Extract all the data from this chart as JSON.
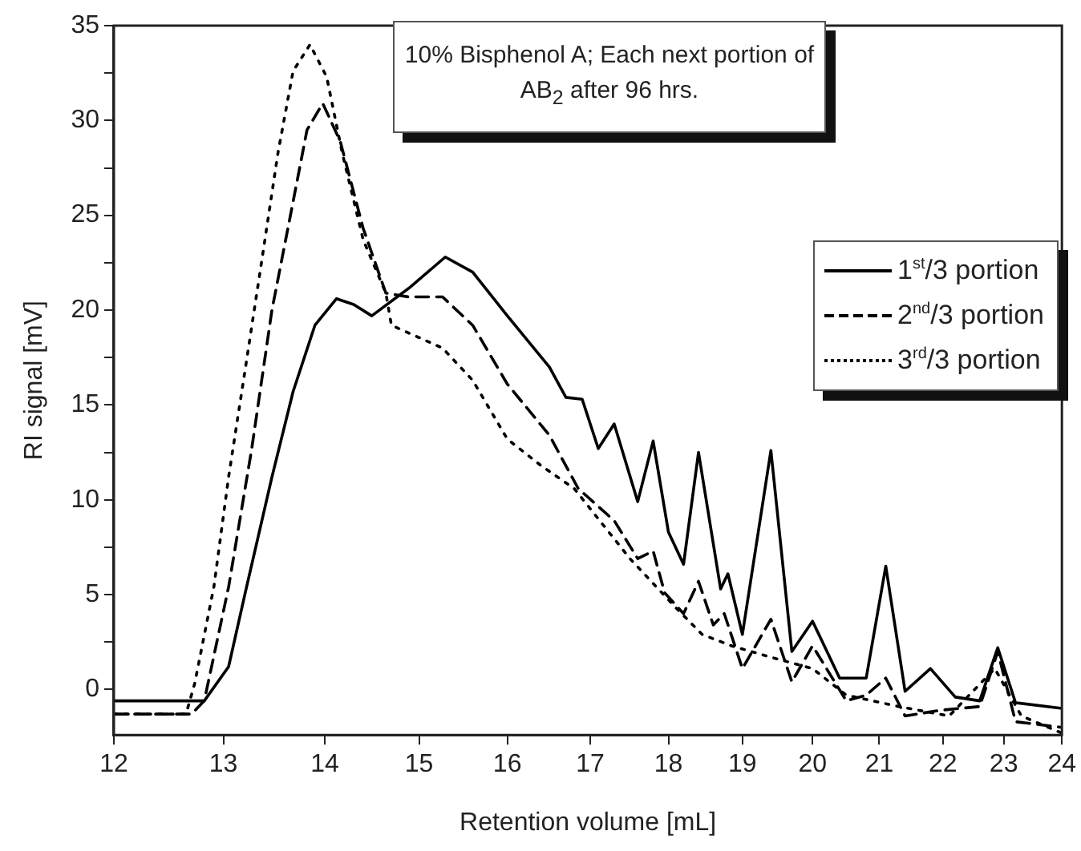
{
  "chart_data": {
    "type": "line",
    "xlabel": "Retention volume [mL]",
    "ylabel": "RI signal [mV]",
    "log": "x",
    "legend": "right",
    "marker": "none",
    "grid": false,
    "annotations": [
      "10% Bisphenol A; Each next portion of AB$_{2}$ after 96 hrs."
    ],
    "xlim": [
      12,
      24
    ],
    "xticks": [
      12,
      13,
      14,
      15,
      16,
      17,
      18,
      19,
      20,
      21,
      22,
      23,
      24
    ],
    "ylim": [
      -2.4,
      35
    ],
    "yticks": [
      0,
      {
        "value": 2.5,
        "label": null
      },
      5,
      {
        "value": 7.5,
        "label": null
      },
      10,
      {
        "value": 12.5,
        "label": null
      },
      15,
      {
        "value": 17.5,
        "label": null
      },
      20,
      {
        "value": 22.5,
        "label": null
      },
      25,
      {
        "value": 27.5,
        "label": null
      },
      30,
      {
        "value": 32.5,
        "label": null
      },
      35
    ],
    "series": [
      {
        "name": "1$^{st}$/3 portion",
        "color": "#000000",
        "line_style": "solid",
        "x": [
          12,
          12.5,
          12.82,
          13.05,
          13.21,
          13.47,
          13.68,
          13.9,
          14.12,
          14.3,
          14.49,
          14.9,
          15.29,
          15.6,
          16.0,
          16.5,
          16.7,
          16.9,
          17.1,
          17.3,
          17.6,
          17.8,
          18.0,
          18.2,
          18.4,
          18.7,
          18.8,
          19.0,
          19.4,
          19.7,
          20.0,
          20.4,
          20.8,
          21.1,
          21.4,
          21.8,
          22.2,
          22.6,
          22.9,
          23.2,
          24
        ],
        "values": [
          -0.6,
          -0.6,
          -0.6,
          1.2,
          5.1,
          11.2,
          15.7,
          19.2,
          20.6,
          20.3,
          19.7,
          21.2,
          22.8,
          22,
          19.7,
          17.0,
          15.4,
          15.3,
          12.7,
          14.0,
          9.9,
          13.1,
          8.3,
          6.6,
          12.5,
          5.3,
          6.1,
          2.9,
          12.6,
          2.0,
          3.6,
          0.6,
          0.6,
          6.5,
          -0.1,
          1.1,
          -0.4,
          -0.6,
          2.2,
          -0.7,
          -1.0
        ]
      },
      {
        "name": "2$^{nd}$/3 portion",
        "color": "#000000",
        "line_style": "dashed",
        "x": [
          12,
          12.4,
          12.7,
          12.82,
          13.05,
          13.27,
          13.47,
          13.65,
          13.82,
          13.98,
          14.16,
          14.4,
          14.64,
          14.88,
          15.26,
          15.6,
          16.0,
          16.5,
          16.85,
          17.3,
          17.6,
          17.8,
          17.95,
          18.2,
          18.4,
          18.6,
          18.75,
          19.0,
          19.4,
          19.7,
          20.0,
          20.5,
          20.8,
          21.1,
          21.4,
          21.95,
          22.6,
          22.9,
          23.2,
          24
        ],
        "values": [
          -1.3,
          -1.3,
          -1.3,
          -0.6,
          5.4,
          12.6,
          20.0,
          24.9,
          29.5,
          30.9,
          28.9,
          24.3,
          20.9,
          20.7,
          20.7,
          19.2,
          16.1,
          13.4,
          10.6,
          8.9,
          6.9,
          7.3,
          5.1,
          4.0,
          5.7,
          3.4,
          4.0,
          1.1,
          3.7,
          0.4,
          2.3,
          -0.6,
          -0.3,
          0.6,
          -1.4,
          -1.1,
          -0.9,
          2.0,
          -1.7,
          -2.0
        ]
      },
      {
        "name": "3$^{rd}$/3 portion",
        "color": "#000000",
        "line_style": "dotted",
        "x": [
          12,
          12.4,
          12.65,
          12.73,
          12.91,
          13.05,
          13.21,
          13.37,
          13.53,
          13.68,
          13.85,
          14.02,
          14.18,
          14.4,
          14.64,
          14.7,
          15.26,
          15.6,
          16.0,
          16.4,
          16.8,
          17.5,
          18.1,
          18.45,
          18.85,
          19.4,
          20.0,
          20.5,
          21.3,
          22.1,
          22.85,
          23.3,
          24
        ],
        "values": [
          -1.3,
          -1.3,
          -1.3,
          0.3,
          5.4,
          11.2,
          16.9,
          22.6,
          28.3,
          32.6,
          34.0,
          32.3,
          28.3,
          23.7,
          20.9,
          19.2,
          18.0,
          16.3,
          13.2,
          11.8,
          10.6,
          6.9,
          4.3,
          2.9,
          2.3,
          1.7,
          1.1,
          -0.3,
          -0.9,
          -1.4,
          1.1,
          -1.4,
          -2.3
        ]
      }
    ]
  }
}
